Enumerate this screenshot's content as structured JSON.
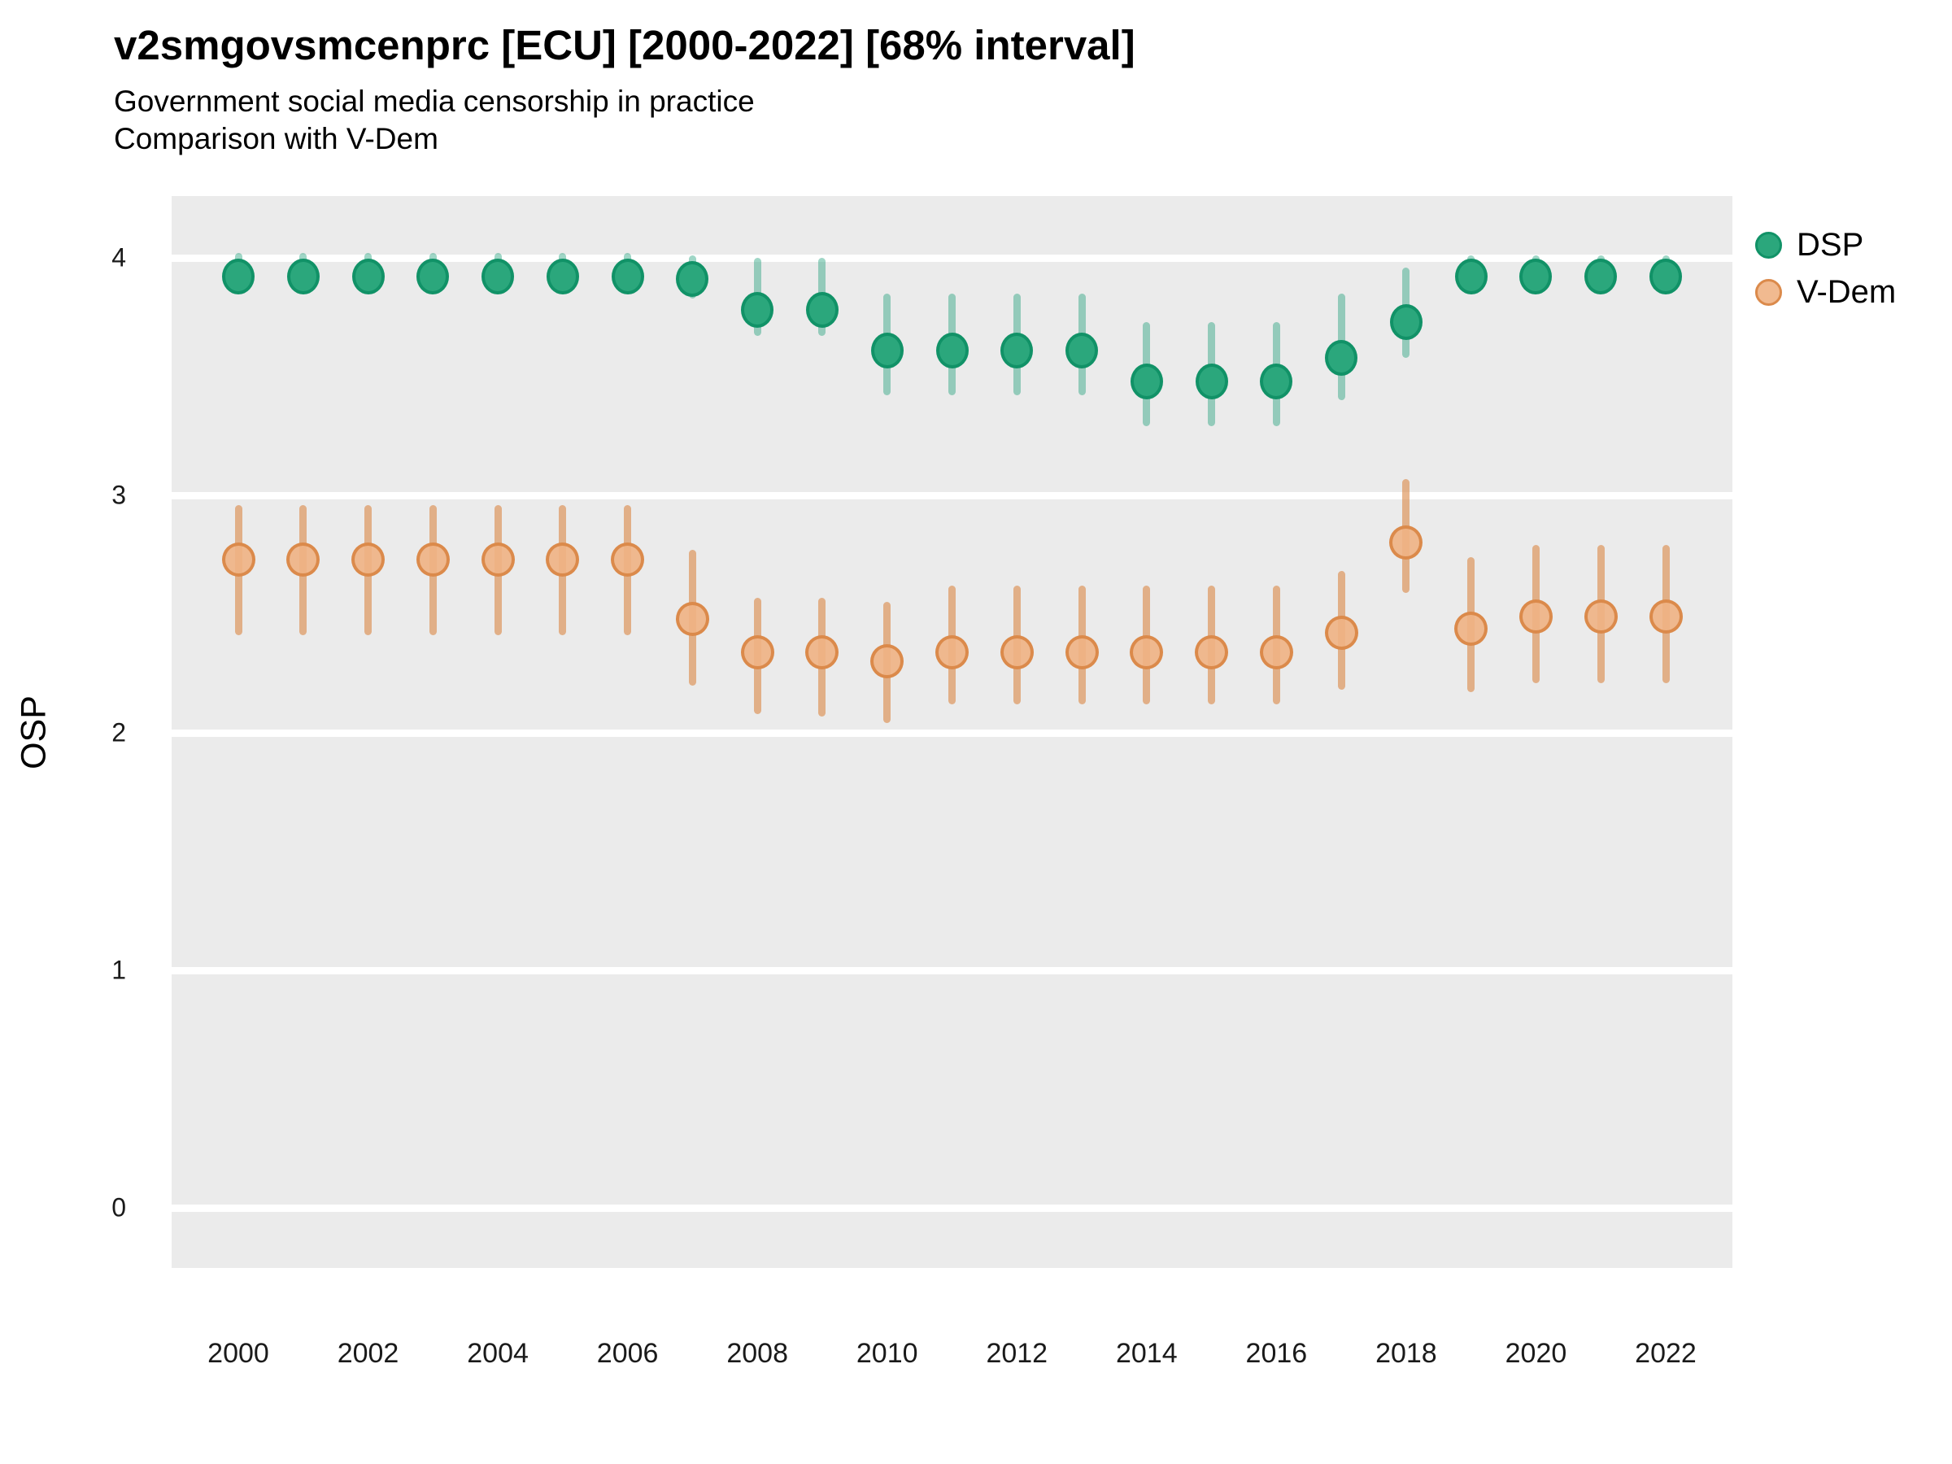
{
  "header": {
    "title": "v2smgovsmcenprc [ECU] [2000-2022] [68% interval]",
    "subtitle_line1": "Government social media censorship in practice",
    "subtitle_line2": "Comparison with V-Dem"
  },
  "axes": {
    "y_label": "OSP",
    "y_ticks": [
      "4",
      "3",
      "2",
      "1",
      "0"
    ],
    "x_ticks": [
      "2000",
      "2002",
      "2004",
      "2006",
      "2008",
      "2010",
      "2012",
      "2014",
      "2016",
      "2018",
      "2020",
      "2022"
    ]
  },
  "legend": {
    "items": [
      {
        "label": "DSP"
      },
      {
        "label": "V-Dem"
      }
    ]
  },
  "colors": {
    "panel_background": "#EBEBEB",
    "gridline": "#FFFFFF",
    "dsp_fill": "#2BA77C",
    "dsp_stroke": "#119267",
    "dsp_interval": "rgba(27,158,119,0.42)",
    "vdem_fill": "rgba(240,178,132,0.9)",
    "vdem_stroke": "#DB8A4B",
    "vdem_interval": "rgba(219,138,75,0.62)"
  },
  "chart_data": {
    "type": "scatter",
    "title": "v2smgovsmcenprc [ECU] [2000-2022] [68% interval]",
    "subtitle": "Government social media censorship in practice — Comparison with V-Dem",
    "xlabel": "",
    "ylabel": "OSP",
    "interval": "68%",
    "ylim": [
      -0.26,
      4.26
    ],
    "y_gridlines": [
      0,
      1,
      2,
      3,
      4
    ],
    "legend_position": "right",
    "x": [
      2000,
      2001,
      2002,
      2003,
      2004,
      2005,
      2006,
      2007,
      2008,
      2009,
      2010,
      2011,
      2012,
      2013,
      2014,
      2015,
      2016,
      2017,
      2018,
      2019,
      2020,
      2021,
      2022
    ],
    "series": [
      {
        "name": "DSP",
        "values": [
          3.92,
          3.92,
          3.92,
          3.92,
          3.92,
          3.92,
          3.92,
          3.91,
          3.78,
          3.78,
          3.61,
          3.61,
          3.61,
          3.61,
          3.48,
          3.48,
          3.48,
          3.58,
          3.73,
          3.92,
          3.92,
          3.92,
          3.92
        ],
        "ci_low": [
          3.85,
          3.85,
          3.85,
          3.85,
          3.85,
          3.85,
          3.85,
          3.83,
          3.67,
          3.67,
          3.42,
          3.42,
          3.42,
          3.42,
          3.29,
          3.29,
          3.29,
          3.4,
          3.58,
          3.86,
          3.86,
          3.86,
          3.86
        ],
        "ci_high": [
          4.02,
          4.02,
          4.02,
          4.02,
          4.02,
          4.02,
          4.02,
          4.01,
          4.0,
          4.0,
          3.85,
          3.85,
          3.85,
          3.85,
          3.73,
          3.73,
          3.73,
          3.85,
          3.96,
          4.01,
          4.01,
          4.01,
          4.01
        ]
      },
      {
        "name": "V-Dem",
        "values": [
          2.73,
          2.73,
          2.73,
          2.73,
          2.73,
          2.73,
          2.73,
          2.48,
          2.34,
          2.34,
          2.3,
          2.34,
          2.34,
          2.34,
          2.34,
          2.34,
          2.34,
          2.42,
          2.8,
          2.44,
          2.49,
          2.49,
          2.49
        ],
        "ci_low": [
          2.41,
          2.41,
          2.41,
          2.41,
          2.41,
          2.41,
          2.41,
          2.2,
          2.08,
          2.07,
          2.04,
          2.12,
          2.12,
          2.12,
          2.12,
          2.12,
          2.12,
          2.18,
          2.59,
          2.17,
          2.21,
          2.21,
          2.21
        ],
        "ci_high": [
          2.96,
          2.96,
          2.96,
          2.96,
          2.96,
          2.96,
          2.96,
          2.77,
          2.57,
          2.57,
          2.55,
          2.62,
          2.62,
          2.62,
          2.62,
          2.62,
          2.62,
          2.68,
          3.07,
          2.74,
          2.79,
          2.79,
          2.79
        ]
      }
    ]
  }
}
